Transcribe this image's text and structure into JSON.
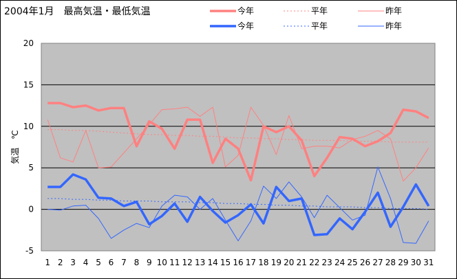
{
  "chart_data": {
    "type": "line",
    "title": "2004年1月　最高気温・最低気温",
    "ylabel": "気温　℃",
    "xlabel": "",
    "ylim": [
      -5,
      20
    ],
    "yticks": [
      -5,
      0,
      5,
      10,
      15,
      20
    ],
    "categories": [
      "1",
      "2",
      "3",
      "4",
      "5",
      "6",
      "7",
      "8",
      "9",
      "10",
      "11",
      "12",
      "13",
      "14",
      "15",
      "16",
      "17",
      "18",
      "19",
      "20",
      "21",
      "22",
      "23",
      "24",
      "25",
      "26",
      "27",
      "28",
      "29",
      "30",
      "31"
    ],
    "grid": "horizontal",
    "plot_background": "#c0c0c0",
    "legend_position": "top",
    "series": [
      {
        "name": "今年",
        "group": "max",
        "style": "thick",
        "color": "#ff8080",
        "values": [
          12.8,
          12.8,
          12.3,
          12.5,
          11.9,
          12.2,
          12.2,
          7.6,
          10.6,
          9.7,
          7.3,
          10.8,
          10.8,
          5.6,
          8.5,
          7.3,
          3.5,
          10.0,
          9.3,
          10.0,
          8.3,
          4.0,
          6.2,
          8.7,
          8.5,
          7.6,
          8.2,
          9.2,
          12.0,
          11.8,
          11.0
        ]
      },
      {
        "name": "平年",
        "group": "max",
        "style": "dashed",
        "color": "#ff8080",
        "values": [
          9.6,
          9.6,
          9.5,
          9.5,
          9.4,
          9.3,
          9.2,
          9.1,
          9.0,
          9.0,
          8.9,
          8.9,
          8.8,
          8.8,
          8.7,
          8.6,
          8.6,
          8.5,
          8.5,
          8.4,
          8.4,
          8.3,
          8.3,
          8.3,
          8.2,
          8.2,
          8.2,
          8.1,
          8.1,
          8.1,
          8.1
        ]
      },
      {
        "name": "昨年",
        "group": "max",
        "style": "thin",
        "color": "#ff8080",
        "values": [
          10.8,
          6.2,
          5.7,
          9.5,
          5.0,
          5.1,
          6.8,
          8.5,
          10.2,
          12.0,
          12.1,
          12.3,
          11.2,
          12.3,
          5.1,
          6.5,
          12.3,
          10.1,
          6.6,
          11.3,
          7.3,
          7.6,
          7.6,
          7.4,
          8.4,
          8.8,
          9.5,
          8.5,
          3.4,
          5.0,
          7.4
        ]
      },
      {
        "name": "今年",
        "group": "min",
        "style": "thick",
        "color": "#3366ff",
        "values": [
          2.7,
          2.7,
          4.2,
          3.6,
          1.4,
          1.3,
          0.4,
          0.9,
          -1.8,
          -0.8,
          0.7,
          -1.5,
          1.5,
          -0.2,
          -1.6,
          -0.7,
          0.6,
          -1.7,
          2.7,
          1.0,
          1.3,
          -3.1,
          -3.0,
          -1.1,
          -2.4,
          -0.3,
          2.0,
          -2.1,
          0.3,
          3.0,
          0.4
        ]
      },
      {
        "name": "平年",
        "group": "min",
        "style": "dashed",
        "color": "#3366ff",
        "values": [
          1.3,
          1.3,
          1.2,
          1.2,
          1.1,
          1.1,
          1.0,
          1.0,
          1.0,
          0.9,
          0.9,
          0.9,
          0.8,
          0.8,
          0.7,
          0.7,
          0.6,
          0.6,
          0.5,
          0.5,
          0.4,
          0.4,
          0.3,
          0.3,
          0.3,
          0.2,
          0.2,
          0.1,
          0.1,
          0.1,
          0.0
        ]
      },
      {
        "name": "昨年",
        "group": "min",
        "style": "thin",
        "color": "#3366ff",
        "values": [
          0.0,
          -0.1,
          0.4,
          0.5,
          -1.1,
          -3.5,
          -2.5,
          -1.7,
          -2.2,
          0.4,
          1.7,
          1.5,
          0.0,
          1.3,
          -1.3,
          -3.8,
          -1.4,
          2.8,
          1.3,
          3.3,
          1.5,
          -1.0,
          1.7,
          0.2,
          -1.3,
          -0.7,
          5.1,
          1.3,
          -4.0,
          -4.1,
          -1.4
        ]
      }
    ]
  }
}
